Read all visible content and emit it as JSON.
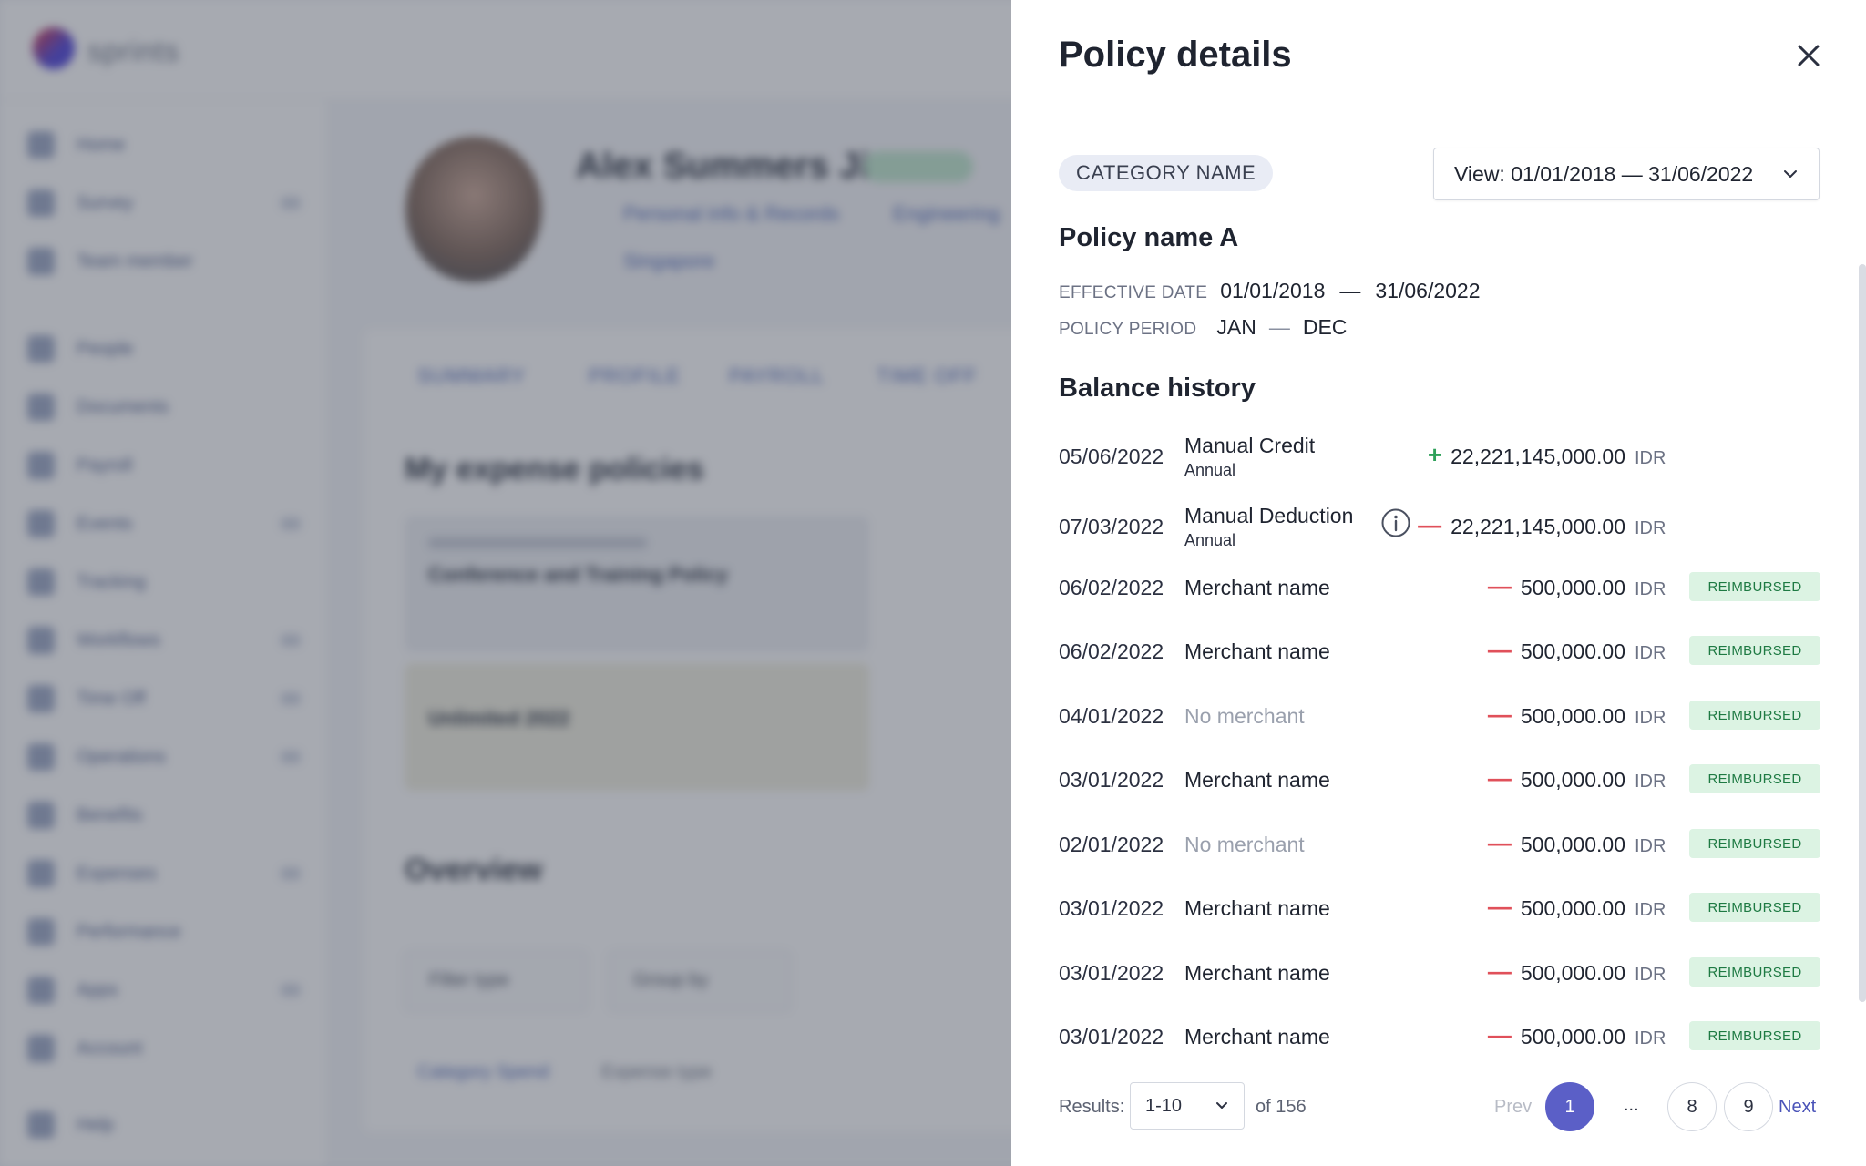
{
  "background": {
    "logo_text": "sprints",
    "sidebar_items": [
      {
        "label": "Home"
      },
      {
        "label": "Survey"
      },
      {
        "label": "Team member"
      },
      {
        "label": "People"
      },
      {
        "label": "Documents"
      },
      {
        "label": "Payroll"
      },
      {
        "label": "Events"
      },
      {
        "label": "Tracking"
      },
      {
        "label": "Workflows"
      },
      {
        "label": "Time Off"
      },
      {
        "label": "Operations"
      },
      {
        "label": "Benefits"
      },
      {
        "label": "Expenses"
      },
      {
        "label": "Performance"
      },
      {
        "label": "Apps"
      },
      {
        "label": "Account"
      },
      {
        "label": "Help"
      }
    ],
    "profile_name": "Alex Summers Jin",
    "profile_status": "Active",
    "profile_meta_1": "Personal info & Records",
    "profile_meta_2": "Engineering",
    "profile_meta_3": "Singapore",
    "tabs": [
      "SUMMARY",
      "PROFILE",
      "PAYROLL",
      "TIME OFF"
    ],
    "section_1": "My expense policies",
    "policy_card_title": "Conference and Training Policy",
    "policy_card_sub": "Unlimited 2022",
    "section_2": "Overview",
    "filter_1": "Filter type",
    "filter_2": "Group by",
    "btn_1": "Category Spend",
    "btn_2": "Expense type"
  },
  "drawer": {
    "title": "Policy details",
    "category": "CATEGORY NAME",
    "view_select": "View: 01/01/2018 — 31/06/2022",
    "policy_name": "Policy name A",
    "effective_label": "EFFECTIVE DATE",
    "effective_start": "01/01/2018",
    "effective_dash": "—",
    "effective_end": "31/06/2022",
    "period_label": "POLICY PERIOD",
    "period_start": "JAN",
    "period_dash": "—",
    "period_end": "DEC",
    "balance_title": "Balance history",
    "history": [
      {
        "date": "05/06/2022",
        "desc": "Manual Credit",
        "sub": "Annual",
        "sign": "+",
        "amount": "22,221,145,000.00",
        "currency": "IDR"
      },
      {
        "date": "07/03/2022",
        "desc": "Manual Deduction",
        "sub": "Annual",
        "sign": "—",
        "amount": "22,221,145,000.00",
        "currency": "IDR"
      },
      {
        "date": "06/02/2022",
        "desc": "Merchant name",
        "sign": "—",
        "amount": "500,000.00",
        "currency": "IDR",
        "badge": "REIMBURSED"
      },
      {
        "date": "06/02/2022",
        "desc": "Merchant name",
        "sign": "—",
        "amount": "500,000.00",
        "currency": "IDR",
        "badge": "REIMBURSED"
      },
      {
        "date": "04/01/2022",
        "desc": "No merchant",
        "sign": "—",
        "amount": "500,000.00",
        "currency": "IDR",
        "badge": "REIMBURSED"
      },
      {
        "date": "03/01/2022",
        "desc": "Merchant name",
        "sign": "—",
        "amount": "500,000.00",
        "currency": "IDR",
        "badge": "REIMBURSED"
      },
      {
        "date": "02/01/2022",
        "desc": "No merchant",
        "sign": "—",
        "amount": "500,000.00",
        "currency": "IDR",
        "badge": "REIMBURSED"
      },
      {
        "date": "03/01/2022",
        "desc": "Merchant name",
        "sign": "—",
        "amount": "500,000.00",
        "currency": "IDR",
        "badge": "REIMBURSED"
      },
      {
        "date": "03/01/2022",
        "desc": "Merchant name",
        "sign": "—",
        "amount": "500,000.00",
        "currency": "IDR",
        "badge": "REIMBURSED"
      },
      {
        "date": "03/01/2022",
        "desc": "Merchant name",
        "sign": "—",
        "amount": "500,000.00",
        "currency": "IDR",
        "badge": "REIMBURSED"
      }
    ],
    "pagination": {
      "results_label": "Results:",
      "results_range": "1-10",
      "results_total": "of 156",
      "prev": "Prev",
      "pages": [
        "1",
        "8",
        "9"
      ],
      "ellipsis": "...",
      "next": "Next"
    }
  },
  "colors": {
    "accent": "#5b5fc7",
    "credit": "#2fa15a",
    "debit": "#e0505a",
    "badge_bg": "#dcf3e3",
    "badge_text": "#1e7a43"
  }
}
